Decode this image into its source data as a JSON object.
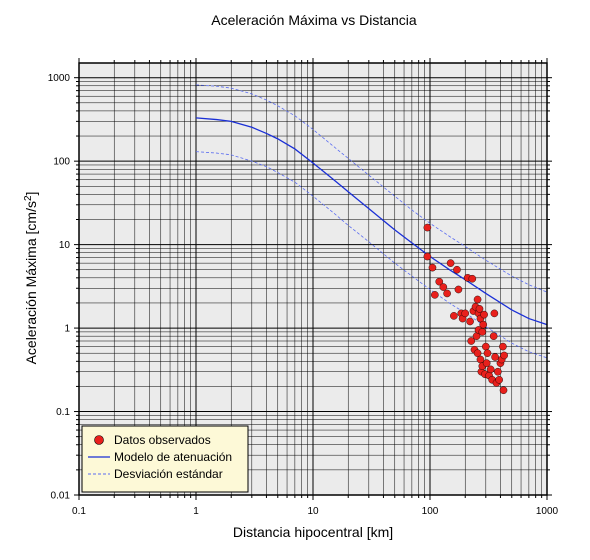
{
  "chart_data": {
    "type": "scatter",
    "title": "Aceleración Máxima vs Distancia",
    "xlabel": "Distancia hipocentral [km]",
    "ylabel": "Aceleración Máxima [cm/s",
    "ylabel_sup": "2",
    "ylabel_end": "]",
    "xscale": "log",
    "yscale": "log",
    "xlim": [
      0.1,
      1000
    ],
    "ylim": [
      0.01,
      1500
    ],
    "x_ticks": [
      "0.1",
      "1",
      "10",
      "100",
      "1000"
    ],
    "y_ticks": [
      "0.01",
      "0.1",
      "1",
      "10",
      "100",
      "1000"
    ],
    "grid": true,
    "legend_position": "bottom-left",
    "colors": {
      "background": "#ebebeb",
      "grid": "#000000",
      "points": "#e8201c",
      "model": "#1a2fd6",
      "deviation": "#5a6cf0",
      "legend_bg": "#fdf9d7"
    },
    "series": [
      {
        "name": "Datos observados",
        "kind": "scatter",
        "x": [
          95,
          95,
          105,
          110,
          120,
          130,
          140,
          150,
          160,
          170,
          175,
          185,
          190,
          200,
          210,
          220,
          225,
          230,
          235,
          240,
          245,
          250,
          255,
          255,
          260,
          260,
          265,
          270,
          270,
          275,
          280,
          280,
          285,
          290,
          295,
          300,
          305,
          310,
          320,
          330,
          340,
          350,
          355,
          360,
          370,
          380,
          390,
          400,
          410,
          420,
          425,
          430
        ],
        "y": [
          16,
          7.2,
          5.3,
          2.5,
          3.6,
          3.1,
          2.6,
          6,
          1.4,
          5,
          2.9,
          1.5,
          1.3,
          1.5,
          4,
          1.2,
          0.7,
          3.9,
          1.6,
          0.55,
          1.8,
          0.8,
          2.2,
          0.5,
          0.95,
          1.5,
          1.7,
          0.42,
          1.3,
          0.3,
          0.9,
          0.35,
          1.1,
          1.45,
          0.28,
          0.6,
          0.38,
          0.5,
          0.27,
          0.32,
          0.24,
          0.8,
          1.5,
          0.45,
          0.22,
          0.3,
          0.24,
          0.38,
          0.42,
          0.6,
          0.18,
          0.47
        ]
      },
      {
        "name": "Modelo de atenuación",
        "kind": "line",
        "x": [
          1,
          1.5,
          2,
          3,
          4,
          5,
          7,
          10,
          15,
          20,
          30,
          50,
          70,
          100,
          150,
          200,
          300,
          500,
          700,
          1000
        ],
        "y": [
          330,
          315,
          300,
          255,
          215,
          185,
          140,
          95,
          60,
          43,
          27,
          15,
          10.5,
          7.2,
          4.9,
          3.8,
          2.6,
          1.65,
          1.3,
          1.1
        ]
      },
      {
        "name": "Desviación estándar",
        "kind": "line",
        "style": "dashed",
        "x": [
          1,
          1.5,
          2,
          3,
          4,
          5,
          7,
          10,
          15,
          20,
          30,
          50,
          70,
          100,
          150,
          200,
          300,
          500,
          700,
          1000
        ],
        "y": [
          820,
          790,
          750,
          640,
          540,
          460,
          350,
          240,
          150,
          108,
          68,
          38,
          26,
          18,
          12.3,
          9.5,
          6.5,
          4.2,
          3.3,
          2.7
        ]
      },
      {
        "name": "",
        "kind": "line",
        "style": "dashed",
        "x": [
          1,
          1.5,
          2,
          3,
          4,
          5,
          7,
          10,
          15,
          20,
          30,
          50,
          70,
          100,
          150,
          200,
          300,
          500,
          700,
          1000
        ],
        "y": [
          130,
          125,
          119,
          100,
          86,
          73,
          56,
          38,
          24,
          17,
          10.8,
          6,
          4.2,
          2.9,
          1.95,
          1.52,
          1.04,
          0.66,
          0.52,
          0.44
        ]
      }
    ]
  }
}
